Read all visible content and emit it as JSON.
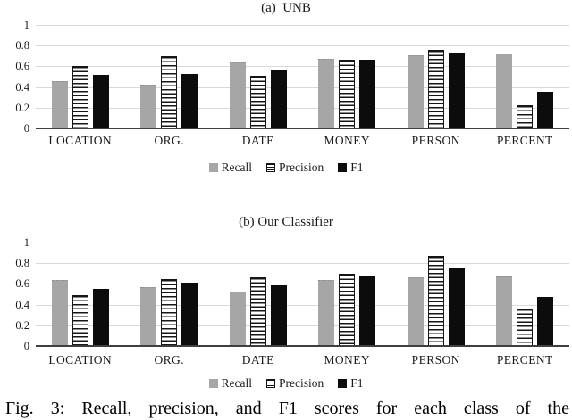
{
  "caption": "Fig. 3: Recall, precision, and F1 scores for each class of the",
  "colors": {
    "recall_bar": "#a6a6a6",
    "precision_stripe": "#161616",
    "precision_fill": "#ffffff",
    "f1_bar": "#0c0c0c",
    "gridline": "#d9d9d9",
    "axis_line": "#3f3f3f"
  },
  "chart_data": [
    {
      "type": "bar",
      "title": "(a)  UNB",
      "categories": [
        "LOCATION",
        "ORG.",
        "DATE",
        "MONEY",
        "PERSON",
        "PERCENT"
      ],
      "series": [
        {
          "name": "Recall",
          "values": [
            0.46,
            0.42,
            0.64,
            0.67,
            0.71,
            0.72
          ]
        },
        {
          "name": "Precision",
          "values": [
            0.6,
            0.7,
            0.51,
            0.66,
            0.76,
            0.22
          ]
        },
        {
          "name": "F1",
          "values": [
            0.52,
            0.53,
            0.57,
            0.66,
            0.73,
            0.35
          ]
        }
      ],
      "ylim": [
        0,
        1
      ],
      "yticks": [
        "1",
        "0.8",
        "0.6",
        "0.4",
        "0.2",
        "0"
      ],
      "grid": true,
      "legend_position": "bottom"
    },
    {
      "type": "bar",
      "title": "(b) Our Classifier",
      "categories": [
        "LOCATION",
        "ORG.",
        "DATE",
        "MONEY",
        "PERSON",
        "PERCENT"
      ],
      "series": [
        {
          "name": "Recall",
          "values": [
            0.64,
            0.57,
            0.53,
            0.64,
            0.66,
            0.67
          ]
        },
        {
          "name": "Precision",
          "values": [
            0.49,
            0.65,
            0.66,
            0.7,
            0.87,
            0.36
          ]
        },
        {
          "name": "F1",
          "values": [
            0.55,
            0.61,
            0.59,
            0.67,
            0.75,
            0.47
          ]
        }
      ],
      "ylim": [
        0,
        1
      ],
      "yticks": [
        "1",
        "0.8",
        "0.6",
        "0.4",
        "0.2",
        "0"
      ],
      "grid": true,
      "legend_position": "bottom"
    }
  ]
}
